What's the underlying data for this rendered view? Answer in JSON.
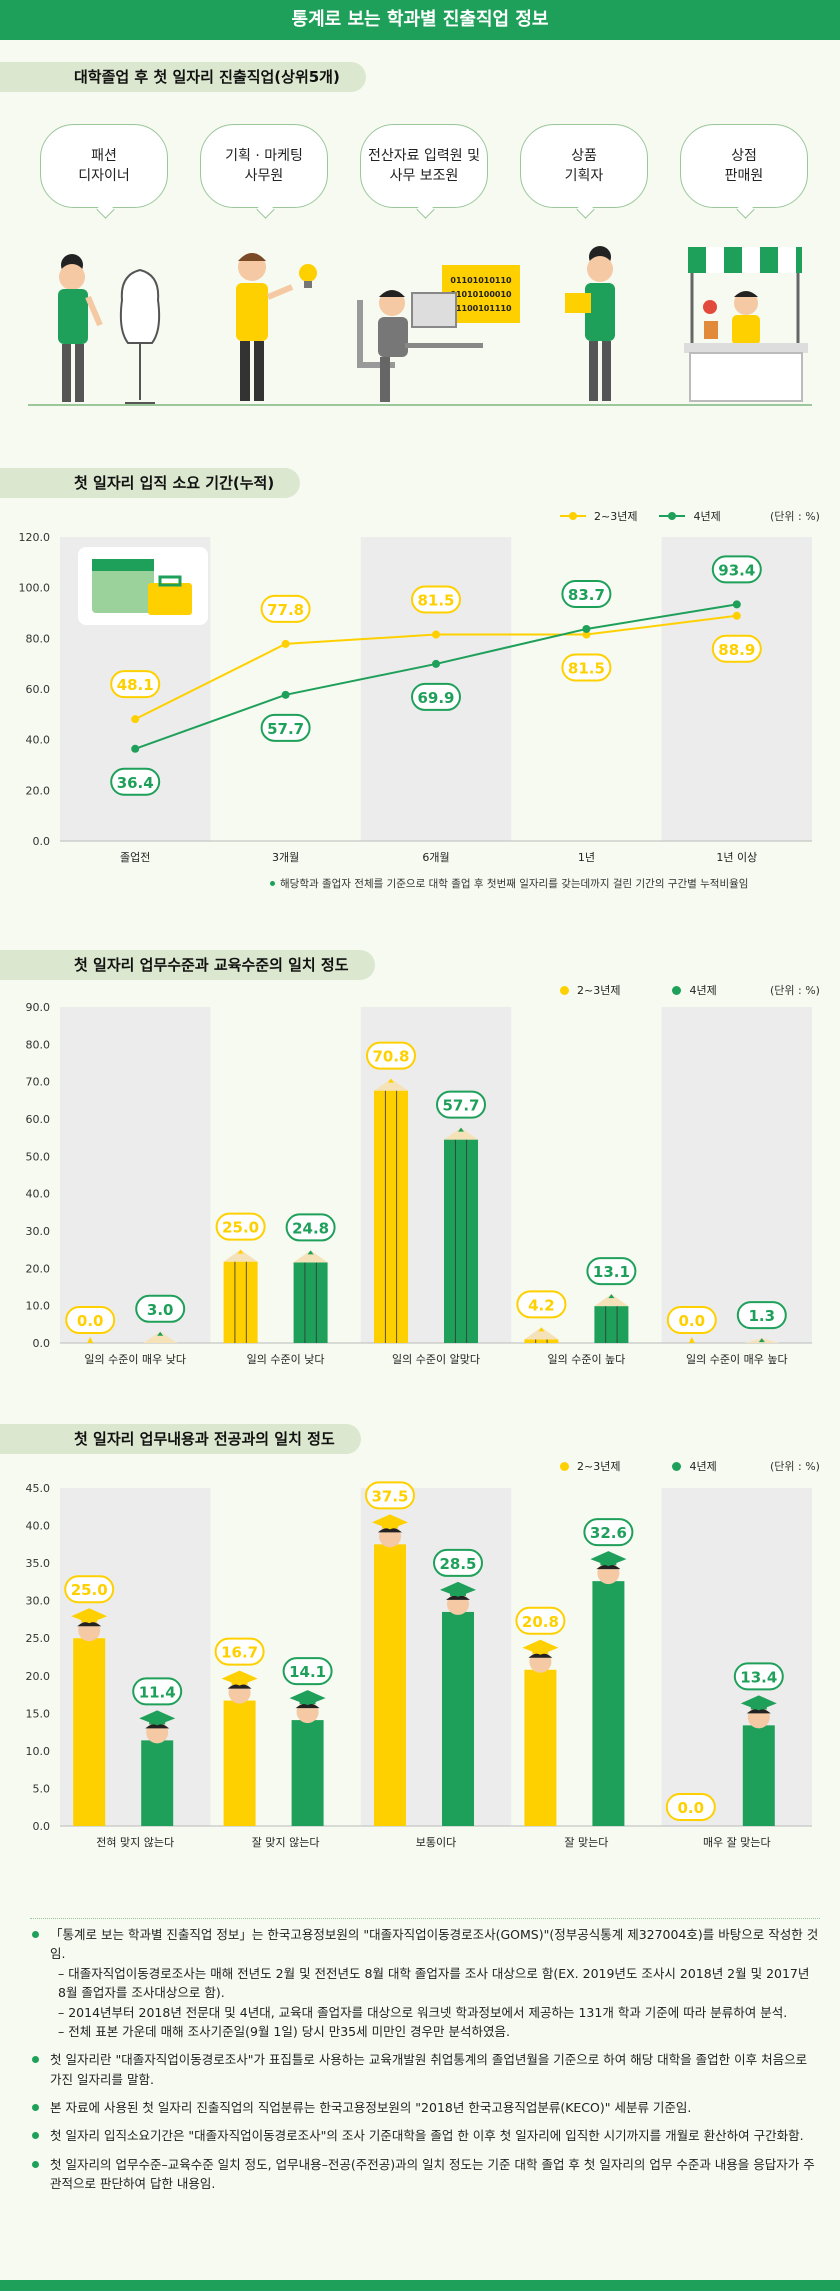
{
  "page_title": "통계로 보는 학과별 진출직업 정보",
  "section1": {
    "title": "대학졸업 후 첫 일자리 진출직업(상위5개)",
    "jobs": [
      "패션\n디자이너",
      "기획 · 마케팅\n사무원",
      "전산자료 입력원 및\n사무 보조원",
      "상품\n기획자",
      "상점\n판매원"
    ],
    "binary_lines": [
      "01101010110",
      "01010100010",
      "11100101110"
    ]
  },
  "colors": {
    "yellow": "#ffd000",
    "green": "#1fa05a",
    "bg": "#f6faf0",
    "band": "#ececec"
  },
  "legend": {
    "a": "2~3년제",
    "b": "4년제",
    "unit": "(단위 : %)"
  },
  "chart_data": [
    {
      "type": "line",
      "title": "첫 일자리 입직 소요 기간(누적)",
      "categories": [
        "졸업전",
        "3개월",
        "6개월",
        "1년",
        "1년 이상"
      ],
      "series": [
        {
          "name": "2~3년제",
          "values": [
            48.1,
            77.8,
            81.5,
            81.5,
            88.9
          ]
        },
        {
          "name": "4년제",
          "values": [
            36.4,
            57.7,
            69.9,
            83.7,
            93.4
          ]
        }
      ],
      "ylim": [
        0,
        120
      ],
      "yticks": [
        "0.0",
        "20.0",
        "40.0",
        "60.0",
        "80.0",
        "100.0",
        "120.0"
      ],
      "note": "해당학과 졸업자 전체를 기준으로 대학 졸업 후 첫번째 일자리를 갖는데까지 걸린 기간의 구간별 누적비율임"
    },
    {
      "type": "bar",
      "title": "첫 일자리 업무수준과 교육수준의 일치 정도",
      "categories": [
        "일의 수준이 매우 낮다",
        "일의 수준이 낮다",
        "일의 수준이 알맞다",
        "일의 수준이 높다",
        "일의 수준이 매우 높다"
      ],
      "series": [
        {
          "name": "2~3년제",
          "values": [
            0.0,
            25.0,
            70.8,
            4.2,
            0.0
          ]
        },
        {
          "name": "4년제",
          "values": [
            3.0,
            24.8,
            57.7,
            13.1,
            1.3
          ]
        }
      ],
      "ylim": [
        0,
        90
      ],
      "yticks": [
        "0.0",
        "10.0",
        "20.0",
        "30.0",
        "40.0",
        "50.0",
        "60.0",
        "70.0",
        "80.0",
        "90.0"
      ]
    },
    {
      "type": "bar",
      "title": "첫 일자리 업무내용과 전공과의 일치 정도",
      "categories": [
        "전혀 맞지 않는다",
        "잘 맞지 않는다",
        "보통이다",
        "잘 맞는다",
        "매우 잘 맞는다"
      ],
      "series": [
        {
          "name": "2~3년제",
          "values": [
            25.0,
            16.7,
            37.5,
            20.8,
            0.0
          ]
        },
        {
          "name": "4년제",
          "values": [
            11.4,
            14.1,
            28.5,
            32.6,
            13.4
          ]
        }
      ],
      "ylim": [
        0,
        45
      ],
      "yticks": [
        "0.0",
        "5.0",
        "10.0",
        "15.0",
        "20.0",
        "25.0",
        "30.0",
        "35.0",
        "40.0",
        "45.0"
      ]
    }
  ],
  "notes": [
    {
      "text": "「통계로 보는 학과별 진출직업 정보」는 한국고용정보원의 \"대졸자직업이동경로조사(GOMS)\"(정부공식통계 제327004호)를 바탕으로 작성한 것임.",
      "subs": [
        "– 대졸자직업이동경로조사는 매해 전년도 2월 및 전전년도 8월 대학 졸업자를 조사 대상으로 함(EX. 2019년도 조사시 2018년 2월 및 2017년 8월 졸업자를 조사대상으로 함).",
        "– 2014년부터 2018년 전문대 및 4년대, 교육대 졸업자를 대상으로 워크넷 학과정보에서 제공하는 131개 학과 기준에 따라 분류하여 분석.",
        "– 전체 표본 가운데 매해 조사기준일(9월 1일) 당시 만35세 미만인 경우만 분석하였음."
      ]
    },
    {
      "text": "첫 일자리란 \"대졸자직업이동경로조사\"가 표집틀로 사용하는 교육개발원 취업통계의 졸업년월을 기준으로 하여 해당 대학을 졸업한 이후 처음으로 가진 일자리를 말함.",
      "subs": []
    },
    {
      "text": "본 자료에 사용된 첫 일자리 진출직업의 직업분류는 한국고용정보원의 \"2018년 한국고용직업분류(KECO)\" 세분류 기준임.",
      "subs": []
    },
    {
      "text": "첫 일자리 입직소요기간은 \"대졸자직업이동경로조사\"의 조사 기준대학을 졸업 한 이후 첫 일자리에 입직한 시기까지를 개월로 환산하여 구간화함.",
      "subs": []
    },
    {
      "text": "첫 일자리의 업무수준–교육수준 일치 정도, 업무내용–전공(주전공)과의 일치 정도는 기준 대학 졸업 후 첫 일자리의 업무 수준과 내용을 응답자가 주관적으로 판단하여 답한 내용임.",
      "subs": []
    }
  ]
}
